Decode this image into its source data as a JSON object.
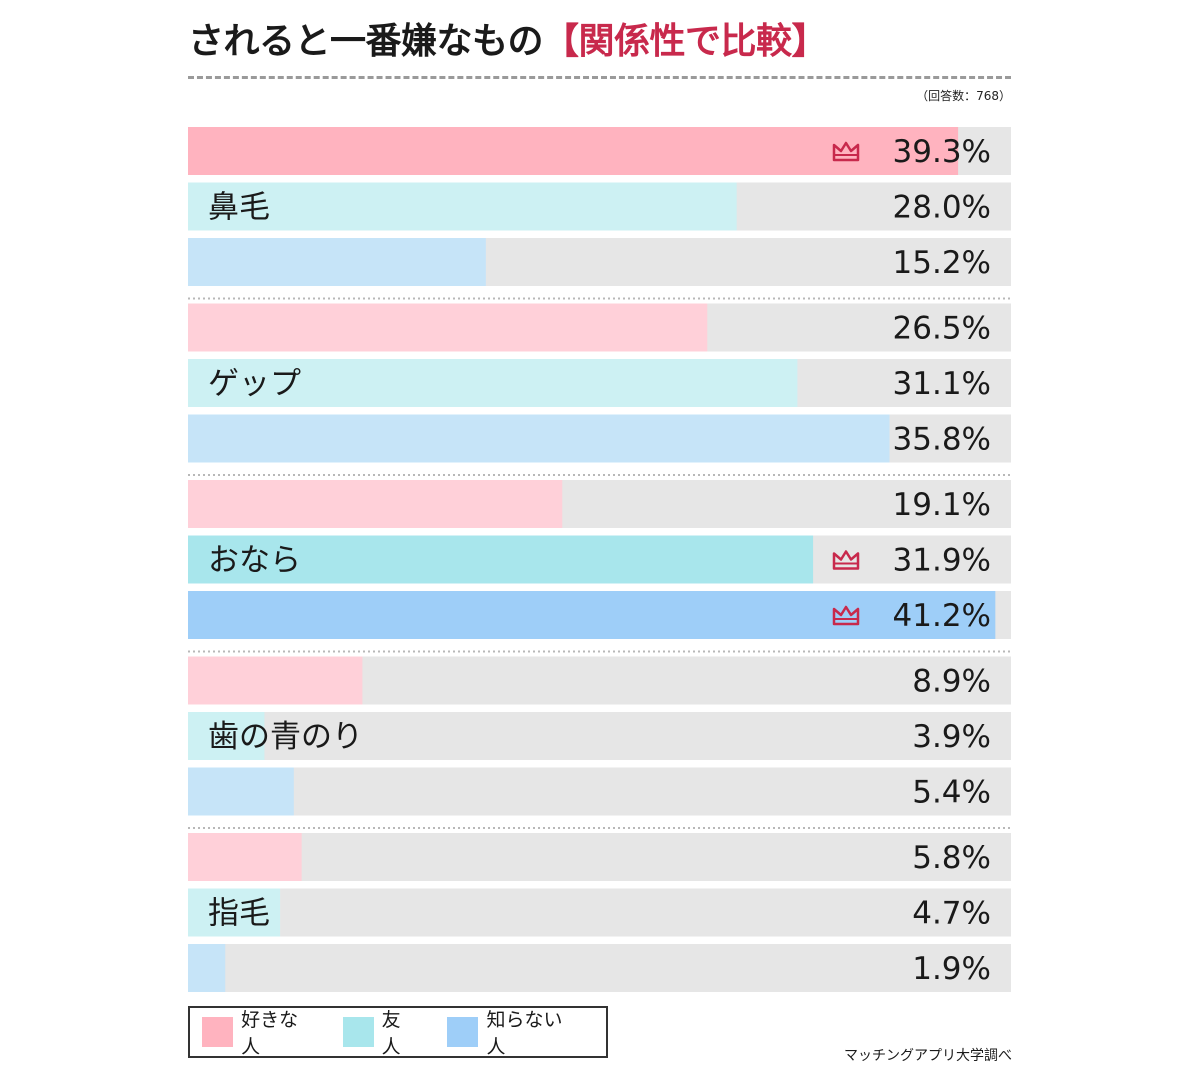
{
  "header": {
    "title_main": "されると一番嫌なもの",
    "title_accent": "【関係性で比較】",
    "sample_note": "（回答数：768）"
  },
  "colors": {
    "like": "#ffb3bf",
    "like_light": "#ffd0d9",
    "friend": "#a8e6ec",
    "friend_light": "#cdf1f3",
    "stranger": "#9ecef8",
    "stranger_light": "#c6e4f8",
    "crown": "#c8294c"
  },
  "chart_data": {
    "type": "bar",
    "orientation": "horizontal",
    "categories": [
      "鼻毛",
      "ゲップ",
      "おなら",
      "歯の青のり",
      "指毛"
    ],
    "series": [
      {
        "name": "好きな人",
        "values": [
          39.3,
          26.5,
          19.1,
          8.9,
          5.8
        ]
      },
      {
        "name": "友人",
        "values": [
          28.0,
          31.1,
          31.9,
          3.9,
          4.7
        ]
      },
      {
        "name": "知らない人",
        "values": [
          15.2,
          35.8,
          41.2,
          5.4,
          1.9
        ]
      }
    ],
    "value_labels": [
      [
        "39.3%",
        "28.0%",
        "15.2%"
      ],
      [
        "26.5%",
        "31.1%",
        "35.8%"
      ],
      [
        "19.1%",
        "31.9%",
        "41.2%"
      ],
      [
        "8.9%",
        "3.9%",
        "5.4%"
      ],
      [
        "5.8%",
        "4.7%",
        "1.9%"
      ]
    ],
    "xlim": [
      0,
      42
    ],
    "top_marked": [
      [
        0,
        0
      ],
      [
        2,
        1
      ],
      [
        2,
        2
      ]
    ],
    "legend_position": "bottom-left",
    "legend": [
      "好きな人",
      "友人",
      "知らない人"
    ]
  },
  "footer": {
    "source": "マッチングアプリ大学調べ"
  }
}
